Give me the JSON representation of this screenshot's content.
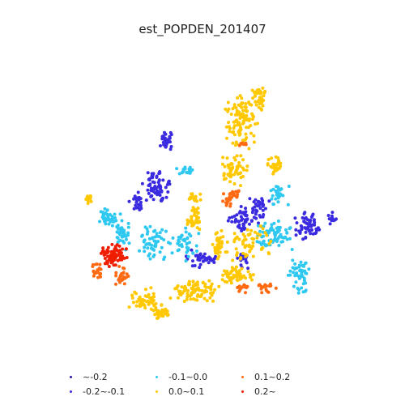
{
  "title": "est_POPDEN_201407",
  "legend": [
    {
      "label": "~-0.2",
      "color": "#2a0fa6"
    },
    {
      "label": "-0.2~-0.1",
      "color": "#3b2be0"
    },
    {
      "label": "-0.1~0.0",
      "color": "#2ec8f0"
    },
    {
      "label": "0.0~0.1",
      "color": "#ffc800"
    },
    {
      "label": "0.1~0.2",
      "color": "#ff6a12"
    },
    {
      "label": "0.2~",
      "color": "#f01e00"
    }
  ]
}
